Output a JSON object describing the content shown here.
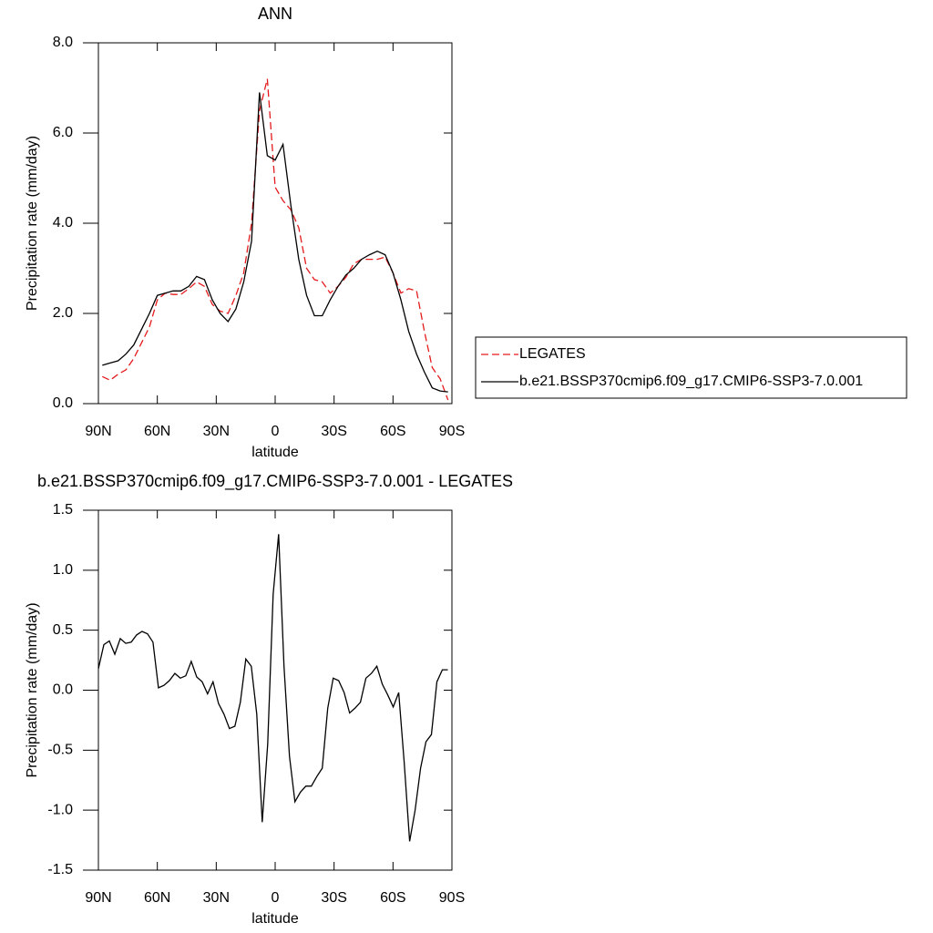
{
  "chart_data": [
    {
      "type": "line",
      "title": "ANN",
      "xlabel": "latitude",
      "ylabel": "Precipitation rate (mm/day)",
      "x": [
        88,
        84,
        80,
        76,
        72,
        68,
        64,
        60,
        56,
        52,
        48,
        44,
        40,
        36,
        32,
        28,
        24,
        20,
        16,
        12,
        8,
        4,
        0,
        -4,
        -8,
        -12,
        -16,
        -20,
        -24,
        -28,
        -32,
        -36,
        -40,
        -44,
        -48,
        -52,
        -56,
        -60,
        -64,
        -68,
        -72,
        -76,
        -80,
        -84,
        -88
      ],
      "series": [
        {
          "name": "LEGATES",
          "color": "#e41a1c",
          "linestyle": "dashed",
          "values": [
            0.6,
            0.52,
            0.65,
            0.75,
            1.0,
            1.35,
            1.7,
            2.3,
            2.45,
            2.42,
            2.42,
            2.55,
            2.7,
            2.6,
            2.2,
            2.05,
            2.0,
            2.4,
            2.9,
            4.0,
            6.5,
            7.2,
            4.8,
            4.5,
            4.3,
            3.9,
            3.0,
            2.75,
            2.7,
            2.45,
            2.6,
            2.8,
            3.1,
            3.2,
            3.2,
            3.2,
            3.25,
            2.9,
            2.45,
            2.55,
            2.5,
            1.6,
            0.8,
            0.55,
            0.08
          ]
        },
        {
          "name": "b.e21.BSSP370cmip6.f09_g17.CMIP6-SSP3-7.0.001",
          "color": "#000000",
          "linestyle": "solid",
          "values": [
            0.85,
            0.9,
            0.95,
            1.1,
            1.3,
            1.65,
            2.0,
            2.4,
            2.45,
            2.5,
            2.5,
            2.6,
            2.82,
            2.75,
            2.3,
            2.0,
            1.82,
            2.1,
            2.7,
            3.6,
            6.9,
            5.5,
            5.4,
            5.75,
            4.4,
            3.2,
            2.4,
            1.95,
            1.95,
            2.3,
            2.6,
            2.85,
            3.0,
            3.2,
            3.3,
            3.38,
            3.3,
            2.9,
            2.3,
            1.6,
            1.1,
            0.7,
            0.35,
            0.28,
            0.26
          ]
        }
      ],
      "xlim": [
        90,
        -90
      ],
      "xticks": [
        {
          "value": 90,
          "label": "90N"
        },
        {
          "value": 60,
          "label": "60N"
        },
        {
          "value": 30,
          "label": "30N"
        },
        0,
        {
          "value": -30,
          "label": "30S"
        },
        {
          "value": -60,
          "label": "60S"
        },
        {
          "value": -90,
          "label": "90S"
        }
      ],
      "ylim": [
        0,
        8
      ],
      "yticks": [
        {
          "value": 0,
          "label": "0.0"
        },
        {
          "value": 2,
          "label": "2.0"
        },
        {
          "value": 4,
          "label": "4.0"
        },
        {
          "value": 6,
          "label": "6.0"
        },
        {
          "value": 8,
          "label": "8.0"
        }
      ],
      "legend": "right"
    },
    {
      "type": "line",
      "title": "b.e21.BSSP370cmip6.f09_g17.CMIP6-SSP3-7.0.001 - LEGATES",
      "xlabel": "latitude",
      "ylabel": "Precipitation rate (mm/day)",
      "x": [
        90,
        87.22,
        84.44,
        81.66,
        78.88,
        76.1,
        73.32,
        70.54,
        67.76,
        64.98,
        62.2,
        59.42,
        56.64,
        53.86,
        51.08,
        48.3,
        45.52,
        42.74,
        39.96,
        37.18,
        34.4,
        31.62,
        28.84,
        26.06,
        23.28,
        20.5,
        17.72,
        14.94,
        12.16,
        9.38,
        6.6,
        3.82,
        1.04,
        -1.74,
        -4.52,
        -7.3,
        -10.08,
        -12.86,
        -15.64,
        -18.42,
        -21.2,
        -23.98,
        -26.76,
        -29.54,
        -32.32,
        -35.1,
        -37.88,
        -40.66,
        -43.44,
        -46.22,
        -49,
        -51.78,
        -54.56,
        -57.34,
        -60.12,
        -62.9,
        -65.68,
        -68.46,
        -71.24,
        -74.02,
        -76.8,
        -79.58,
        -82.36,
        -85.14,
        -87.92
      ],
      "series": [
        {
          "color": "#000000",
          "linestyle": "solid",
          "values": [
            0.18,
            0.38,
            0.41,
            0.3,
            0.43,
            0.39,
            0.4,
            0.46,
            0.49,
            0.47,
            0.4,
            0.02,
            0.04,
            0.08,
            0.14,
            0.1,
            0.12,
            0.24,
            0.11,
            0.07,
            -0.03,
            0.07,
            -0.11,
            -0.2,
            -0.32,
            -0.3,
            -0.1,
            0.26,
            0.2,
            -0.2,
            -1.1,
            -0.45,
            0.8,
            1.3,
            0.2,
            -0.55,
            -0.93,
            -0.85,
            -0.8,
            -0.8,
            -0.72,
            -0.65,
            -0.15,
            0.1,
            0.08,
            -0.02,
            -0.19,
            -0.15,
            -0.1,
            0.1,
            0.14,
            0.2,
            0.05,
            -0.04,
            -0.14,
            -0.02,
            -0.6,
            -1.26,
            -1.0,
            -0.65,
            -0.43,
            -0.37,
            0.07,
            0.17,
            0.17
          ]
        }
      ],
      "xlim": [
        90,
        -90
      ],
      "xticks": [
        {
          "value": 90,
          "label": "90N"
        },
        {
          "value": 60,
          "label": "60N"
        },
        {
          "value": 30,
          "label": "30N"
        },
        0,
        {
          "value": -30,
          "label": "30S"
        },
        {
          "value": -60,
          "label": "60S"
        },
        {
          "value": -90,
          "label": "90S"
        }
      ],
      "ylim": [
        -1.5,
        1.5
      ],
      "yticks": [
        -1.5,
        {
          "value": -1,
          "label": "-1.0"
        },
        -0.5,
        {
          "value": 0,
          "label": "0.0"
        },
        0.5,
        {
          "value": 1,
          "label": "1.0"
        },
        1.5
      ]
    }
  ]
}
